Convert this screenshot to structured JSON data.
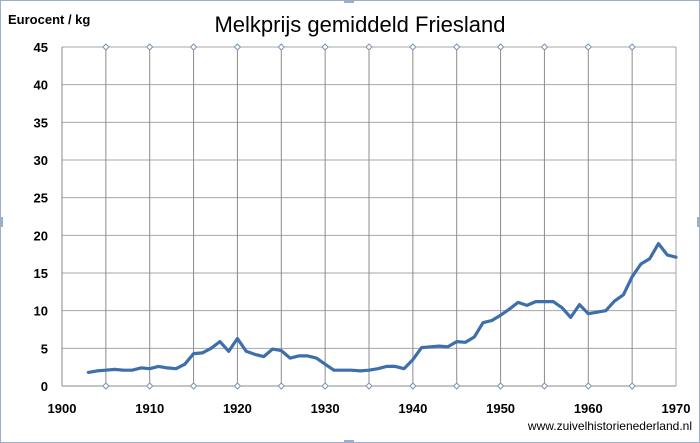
{
  "chart_data": {
    "type": "line",
    "title": "Melkprijs gemiddeld Friesland",
    "ylabel": "Eurocent  / kg",
    "xlabel": "",
    "xlim": [
      1900,
      1970
    ],
    "ylim": [
      0,
      45
    ],
    "x_ticks": [
      1900,
      1910,
      1920,
      1930,
      1940,
      1950,
      1960,
      1970
    ],
    "y_ticks": [
      0,
      5,
      10,
      15,
      20,
      25,
      30,
      35,
      40,
      45
    ],
    "grid": true,
    "line_color": "#3d6faa",
    "series": [
      {
        "x": [
          1903,
          1904,
          1905,
          1906,
          1907,
          1908,
          1909,
          1910,
          1911,
          1912,
          1913,
          1914,
          1915,
          1916,
          1917,
          1918,
          1919,
          1920,
          1921,
          1922,
          1923,
          1924,
          1925,
          1926,
          1927,
          1928,
          1929,
          1930,
          1931,
          1932,
          1933,
          1934,
          1935,
          1936,
          1937,
          1938,
          1939,
          1940,
          1941,
          1942,
          1943,
          1944,
          1945,
          1946,
          1947,
          1948,
          1949,
          1950,
          1951,
          1952,
          1953,
          1954,
          1955,
          1956,
          1957,
          1958,
          1959,
          1960,
          1961,
          1962,
          1963,
          1964,
          1965,
          1966,
          1967,
          1968,
          1969,
          1970
        ],
        "values": [
          1.8,
          2.0,
          2.1,
          2.2,
          2.1,
          2.1,
          2.4,
          2.3,
          2.6,
          2.4,
          2.3,
          2.9,
          4.3,
          4.4,
          5.0,
          5.9,
          4.6,
          6.3,
          4.6,
          4.2,
          3.9,
          4.9,
          4.7,
          3.7,
          4.0,
          4.0,
          3.7,
          2.9,
          2.1,
          2.1,
          2.1,
          2.0,
          2.1,
          2.3,
          2.6,
          2.6,
          2.3,
          3.5,
          5.1,
          5.2,
          5.3,
          5.2,
          5.9,
          5.8,
          6.5,
          8.4,
          8.7,
          9.4,
          10.2,
          11.1,
          10.7,
          11.2,
          11.2,
          11.2,
          10.4,
          9.1,
          10.8,
          9.6,
          9.8,
          10.0,
          11.3,
          12.1,
          14.5,
          16.2,
          16.9,
          18.9,
          17.4,
          17.1
        ]
      }
    ],
    "source_note": "www.zuivelhistorienederland.nl"
  }
}
